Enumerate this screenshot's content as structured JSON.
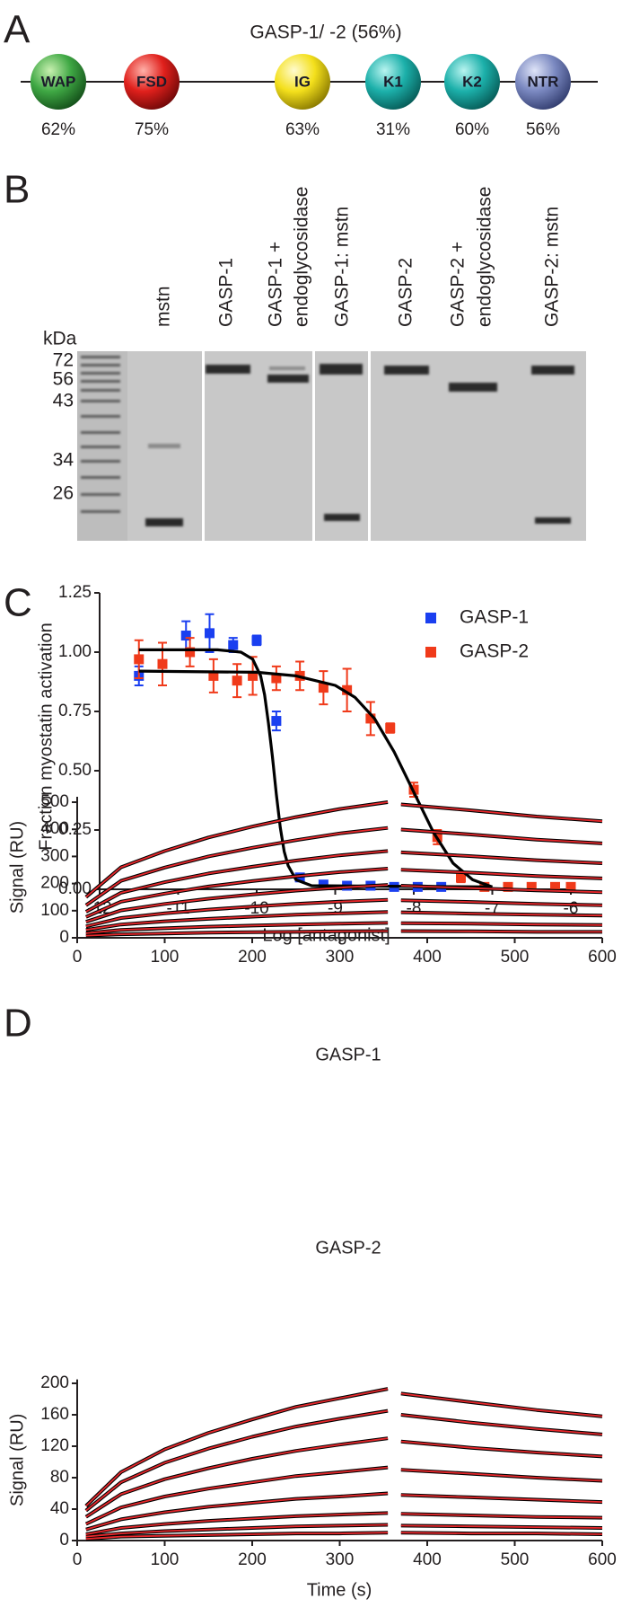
{
  "panel_labels": [
    "A",
    "B",
    "C",
    "D"
  ],
  "domains": {
    "title": "GASP-1/ -2 (56%)",
    "items": [
      {
        "label": "WAP",
        "identity": "62%"
      },
      {
        "label": "FSD",
        "identity": "75%"
      },
      {
        "label": "IG",
        "identity": "63%"
      },
      {
        "label": "K1",
        "identity": "31%"
      },
      {
        "label": "K2",
        "identity": "60%"
      },
      {
        "label": "NTR",
        "identity": "56%"
      }
    ]
  },
  "gel": {
    "unit": "kDa",
    "markers": [
      "72",
      "56",
      "43",
      "34",
      "26"
    ],
    "lanes": [
      [
        "mstn"
      ],
      [
        "GASP-1"
      ],
      [
        "GASP-1  +",
        "endoglycosidase"
      ],
      [
        "GASP-1: mstn"
      ],
      [
        "GASP-2"
      ],
      [
        "GASP-2  +",
        "endoglycosidase"
      ],
      [
        "GASP-2: mstn"
      ]
    ]
  },
  "chart_data": [
    {
      "type": "scatter",
      "xlabel": "Log [antagonist]",
      "ylabel": "Fraction myostatin activation",
      "xlim": [
        -12,
        -6
      ],
      "xticks": [
        -12,
        -11,
        -10,
        -9,
        -8,
        -7,
        -6
      ],
      "ylim": [
        0,
        1.25
      ],
      "yticks": [
        {
          "value": 0,
          "label": "0.00"
        },
        {
          "value": 0.25,
          "label": "0.25"
        },
        {
          "value": 0.5,
          "label": "0.50"
        },
        {
          "value": 0.75,
          "label": "0.75"
        },
        {
          "value": 1,
          "label": "1.00"
        },
        {
          "value": 1.25,
          "label": "1.25"
        }
      ],
      "legend": "upper right",
      "series": [
        {
          "name": "GASP-1",
          "color": "#1a3ff0",
          "x": [
            -11.5,
            -10.9,
            -10.6,
            -10.3,
            -10.0,
            -9.75,
            -9.45,
            -9.15,
            -8.85,
            -8.55,
            -8.25,
            -7.95,
            -7.65
          ],
          "values": [
            0.9,
            1.07,
            1.08,
            1.03,
            1.05,
            0.71,
            0.05,
            0.02,
            0.015,
            0.015,
            0.01,
            0.01,
            0.01
          ],
          "errors": [
            0.04,
            0.06,
            0.08,
            0.03,
            0.02,
            0.04,
            0.01,
            0.01,
            0.01,
            0.01,
            0.01,
            0.01,
            0.01
          ]
        },
        {
          "name": "GASP-2",
          "color": "#f03a1a",
          "x": [
            -11.5,
            -11.2,
            -10.85,
            -10.55,
            -10.25,
            -10.05,
            -9.75,
            -9.45,
            -9.15,
            -8.85,
            -8.55,
            -8.3,
            -8.0,
            -7.7,
            -7.4,
            -7.1,
            -6.8,
            -6.5,
            -6.2,
            -6.0
          ],
          "values": [
            0.97,
            0.95,
            1.0,
            0.9,
            0.88,
            0.9,
            0.89,
            0.9,
            0.85,
            0.84,
            0.72,
            0.68,
            0.42,
            0.22,
            0.05,
            0.01,
            0.01,
            0.01,
            0.01,
            0.01
          ],
          "errors": [
            0.08,
            0.09,
            0.06,
            0.07,
            0.07,
            0.08,
            0.05,
            0.06,
            0.07,
            0.09,
            0.07,
            0.02,
            0.03,
            0.03,
            0.02,
            0.01,
            0.01,
            0.01,
            0.01,
            0.01
          ]
        }
      ],
      "fit_lines": [
        {
          "color": "#000000",
          "x": [
            -11.5,
            -10.5,
            -10.2,
            -10.05,
            -9.95,
            -9.9,
            -9.85,
            -9.8,
            -9.75,
            -9.7,
            -9.65,
            -9.6,
            -9.5,
            -9.3,
            -7.0
          ],
          "values": [
            1.01,
            1.01,
            1.0,
            0.97,
            0.9,
            0.82,
            0.7,
            0.56,
            0.4,
            0.26,
            0.16,
            0.1,
            0.04,
            0.015,
            0.01
          ]
        },
        {
          "color": "#000000",
          "x": [
            -11.5,
            -10,
            -9.5,
            -9,
            -8.75,
            -8.5,
            -8.25,
            -8,
            -7.75,
            -7.5,
            -7.25,
            -7.0
          ],
          "values": [
            0.92,
            0.915,
            0.9,
            0.86,
            0.81,
            0.72,
            0.58,
            0.41,
            0.24,
            0.11,
            0.04,
            0.01
          ]
        }
      ]
    },
    {
      "type": "line",
      "title": "GASP-1",
      "ylabel": "Signal (RU)",
      "fit_color": "#e8282c",
      "xlim": [
        0,
        600
      ],
      "xticks": [
        0,
        100,
        200,
        300,
        400,
        500,
        600
      ],
      "ylim": [
        0,
        520
      ],
      "yticks": [
        0,
        100,
        200,
        300,
        400,
        500
      ],
      "x": [
        10,
        50,
        100,
        150,
        200,
        250,
        300,
        355,
        362,
        370,
        450,
        525,
        600
      ],
      "series": [
        {
          "color": "#000000",
          "values": [
            150,
            260,
            320,
            370,
            410,
            445,
            475,
            500,
            null,
            492,
            470,
            447,
            430
          ]
        },
        {
          "color": "#000000",
          "values": [
            120,
            210,
            259,
            300,
            332,
            360,
            385,
            405,
            null,
            399,
            381,
            362,
            348
          ]
        },
        {
          "color": "#000000",
          "values": [
            96,
            166,
            205,
            237,
            262,
            285,
            304,
            320,
            null,
            315,
            301,
            286,
            275
          ]
        },
        {
          "color": "#000000",
          "values": [
            77,
            133,
            163,
            189,
            209,
            227,
            242,
            255,
            null,
            251,
            240,
            228,
            219
          ]
        },
        {
          "color": "#000000",
          "values": [
            59,
            101,
            125,
            144,
            160,
            174,
            185,
            195,
            null,
            192,
            183,
            175,
            168
          ]
        },
        {
          "color": "#000000",
          "values": [
            42,
            73,
            90,
            104,
            115,
            125,
            133,
            140,
            null,
            138,
            132,
            125,
            120
          ]
        },
        {
          "color": "#000000",
          "values": [
            29,
            49,
            61,
            70,
            78,
            85,
            90,
            95,
            null,
            94,
            89,
            85,
            82
          ]
        },
        {
          "color": "#000000",
          "values": [
            17,
            29,
            35,
            41,
            45,
            49,
            52,
            55,
            null,
            54,
            52,
            49,
            47
          ]
        },
        {
          "color": "#000000",
          "values": [
            8,
            13,
            16,
            19,
            21,
            22,
            24,
            25,
            null,
            25,
            24,
            22,
            22
          ]
        }
      ]
    },
    {
      "type": "line",
      "title": "GASP-2",
      "xlabel": "Time (s)",
      "ylabel": "Signal (RU)",
      "fit_color": "#e8282c",
      "xlim": [
        0,
        600
      ],
      "xticks": [
        0,
        100,
        200,
        300,
        400,
        500,
        600
      ],
      "ylim": [
        0,
        205
      ],
      "yticks": [
        0,
        40,
        80,
        120,
        160,
        200
      ],
      "x": [
        10,
        50,
        100,
        150,
        200,
        250,
        300,
        355,
        362,
        370,
        450,
        525,
        600
      ],
      "series": [
        {
          "color": "#000000",
          "values": [
            44,
            87,
            116,
            137,
            154,
            170,
            181,
            193,
            null,
            187,
            176,
            166,
            158
          ]
        },
        {
          "color": "#000000",
          "values": [
            38,
            74,
            99,
            117,
            132,
            145,
            155,
            165,
            null,
            160,
            150,
            142,
            135
          ]
        },
        {
          "color": "#000000",
          "values": [
            30,
            59,
            78,
            92,
            104,
            114,
            122,
            130,
            null,
            126,
            118,
            112,
            107
          ]
        },
        {
          "color": "#000000",
          "values": [
            21,
            42,
            56,
            66,
            74,
            82,
            87,
            93,
            null,
            90,
            85,
            80,
            76
          ]
        },
        {
          "color": "#000000",
          "values": [
            14,
            27,
            36,
            43,
            48,
            53,
            56,
            60,
            null,
            58,
            55,
            52,
            49
          ]
        },
        {
          "color": "#000000",
          "values": [
            8,
            16,
            21,
            25,
            28,
            31,
            33,
            35,
            null,
            34,
            32,
            30,
            29
          ]
        },
        {
          "color": "#000000",
          "values": [
            5,
            9,
            12,
            14,
            16,
            18,
            19,
            20,
            null,
            19,
            18,
            17,
            16
          ]
        },
        {
          "color": "#000000",
          "values": [
            2,
            5,
            6,
            7,
            8,
            9,
            9,
            10,
            null,
            10,
            9,
            9,
            8
          ]
        }
      ]
    }
  ]
}
